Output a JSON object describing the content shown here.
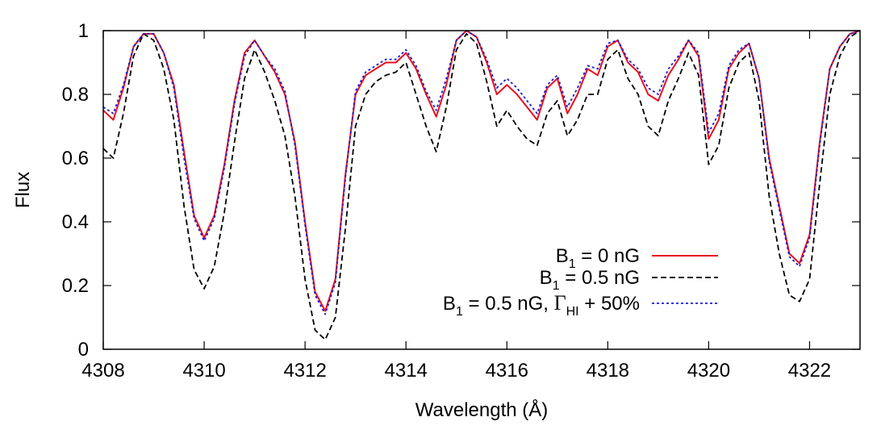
{
  "chart_data": {
    "type": "line",
    "xlabel": "Wavelength (Å)",
    "ylabel": "Flux",
    "xlim": [
      4308,
      4323
    ],
    "ylim": [
      0,
      1
    ],
    "xticks": [
      "4308",
      "4310",
      "4312",
      "4314",
      "4316",
      "4318",
      "4320",
      "4322"
    ],
    "yticks": [
      "0",
      "0.2",
      "0.4",
      "0.6",
      "0.8",
      "1"
    ],
    "grid": false,
    "legend_position": "bottom-right",
    "series": [
      {
        "name": "B1 = 0 nG",
        "legend": {
          "prefix": "B",
          "sub": "1",
          "rest": " =    0 nG"
        },
        "color": "#e8101c",
        "style": "solid",
        "x": [
          4308.0,
          4308.2,
          4308.4,
          4308.6,
          4308.8,
          4309.0,
          4309.2,
          4309.4,
          4309.6,
          4309.8,
          4310.0,
          4310.2,
          4310.4,
          4310.6,
          4310.8,
          4311.0,
          4311.2,
          4311.4,
          4311.6,
          4311.8,
          4312.0,
          4312.2,
          4312.4,
          4312.6,
          4312.8,
          4313.0,
          4313.2,
          4313.4,
          4313.6,
          4313.8,
          4314.0,
          4314.2,
          4314.4,
          4314.6,
          4314.8,
          4315.0,
          4315.2,
          4315.4,
          4315.6,
          4315.8,
          4316.0,
          4316.2,
          4316.4,
          4316.6,
          4316.8,
          4317.0,
          4317.2,
          4317.4,
          4317.6,
          4317.8,
          4318.0,
          4318.2,
          4318.4,
          4318.6,
          4318.8,
          4319.0,
          4319.2,
          4319.4,
          4319.6,
          4319.8,
          4320.0,
          4320.2,
          4320.4,
          4320.6,
          4320.8,
          4321.0,
          4321.2,
          4321.4,
          4321.6,
          4321.8,
          4322.0,
          4322.2,
          4322.4,
          4322.6,
          4322.8,
          4323.0
        ],
        "y": [
          0.75,
          0.72,
          0.82,
          0.95,
          0.99,
          0.99,
          0.93,
          0.83,
          0.62,
          0.42,
          0.35,
          0.42,
          0.58,
          0.78,
          0.93,
          0.97,
          0.92,
          0.87,
          0.8,
          0.65,
          0.4,
          0.18,
          0.12,
          0.22,
          0.55,
          0.8,
          0.86,
          0.88,
          0.9,
          0.9,
          0.93,
          0.88,
          0.8,
          0.73,
          0.83,
          0.97,
          1.0,
          0.98,
          0.9,
          0.8,
          0.83,
          0.8,
          0.76,
          0.72,
          0.82,
          0.85,
          0.74,
          0.8,
          0.88,
          0.86,
          0.95,
          0.97,
          0.9,
          0.87,
          0.8,
          0.78,
          0.86,
          0.91,
          0.97,
          0.92,
          0.66,
          0.72,
          0.88,
          0.93,
          0.96,
          0.85,
          0.6,
          0.45,
          0.3,
          0.27,
          0.36,
          0.65,
          0.88,
          0.95,
          0.99,
          1.0
        ]
      },
      {
        "name": "B1 = 0.5 nG",
        "legend": {
          "prefix": "B",
          "sub": "1",
          "rest": " = 0.5 nG"
        },
        "color": "#000000",
        "style": "dashed",
        "x": [
          4308.0,
          4308.2,
          4308.4,
          4308.6,
          4308.8,
          4309.0,
          4309.2,
          4309.4,
          4309.6,
          4309.8,
          4310.0,
          4310.2,
          4310.4,
          4310.6,
          4310.8,
          4311.0,
          4311.2,
          4311.4,
          4311.6,
          4311.8,
          4312.0,
          4312.2,
          4312.4,
          4312.6,
          4312.8,
          4313.0,
          4313.2,
          4313.4,
          4313.6,
          4313.8,
          4314.0,
          4314.2,
          4314.4,
          4314.6,
          4314.8,
          4315.0,
          4315.2,
          4315.4,
          4315.6,
          4315.8,
          4316.0,
          4316.2,
          4316.4,
          4316.6,
          4316.8,
          4317.0,
          4317.2,
          4317.4,
          4317.6,
          4317.8,
          4318.0,
          4318.2,
          4318.4,
          4318.6,
          4318.8,
          4319.0,
          4319.2,
          4319.4,
          4319.6,
          4319.8,
          4320.0,
          4320.2,
          4320.4,
          4320.6,
          4320.8,
          4321.0,
          4321.2,
          4321.4,
          4321.6,
          4321.8,
          4322.0,
          4322.2,
          4322.4,
          4322.6,
          4322.8,
          4323.0
        ],
        "y": [
          0.63,
          0.6,
          0.74,
          0.92,
          0.99,
          0.97,
          0.88,
          0.72,
          0.45,
          0.25,
          0.19,
          0.26,
          0.43,
          0.65,
          0.85,
          0.94,
          0.87,
          0.78,
          0.67,
          0.48,
          0.22,
          0.06,
          0.03,
          0.1,
          0.38,
          0.7,
          0.8,
          0.84,
          0.86,
          0.87,
          0.9,
          0.8,
          0.7,
          0.62,
          0.76,
          0.94,
          0.99,
          0.96,
          0.84,
          0.7,
          0.75,
          0.7,
          0.66,
          0.64,
          0.74,
          0.78,
          0.67,
          0.72,
          0.8,
          0.8,
          0.91,
          0.94,
          0.85,
          0.8,
          0.7,
          0.67,
          0.78,
          0.85,
          0.93,
          0.86,
          0.58,
          0.64,
          0.82,
          0.9,
          0.93,
          0.78,
          0.48,
          0.3,
          0.17,
          0.15,
          0.22,
          0.52,
          0.8,
          0.92,
          0.98,
          1.0
        ]
      },
      {
        "name": "B1 = 0.5 nG, ΓHI + 50%",
        "legend": {
          "prefix": "B",
          "sub": "1",
          "rest": " = 0.5 nG, ",
          "gamma": "Γ",
          "gamma_sub": "HI",
          "tail": " + 50%"
        },
        "color": "#1a1adc",
        "style": "dotted",
        "x": [
          4308.0,
          4308.2,
          4308.4,
          4308.6,
          4308.8,
          4309.0,
          4309.2,
          4309.4,
          4309.6,
          4309.8,
          4310.0,
          4310.2,
          4310.4,
          4310.6,
          4310.8,
          4311.0,
          4311.2,
          4311.4,
          4311.6,
          4311.8,
          4312.0,
          4312.2,
          4312.4,
          4312.6,
          4312.8,
          4313.0,
          4313.2,
          4313.4,
          4313.6,
          4313.8,
          4314.0,
          4314.2,
          4314.4,
          4314.6,
          4314.8,
          4315.0,
          4315.2,
          4315.4,
          4315.6,
          4315.8,
          4316.0,
          4316.2,
          4316.4,
          4316.6,
          4316.8,
          4317.0,
          4317.2,
          4317.4,
          4317.6,
          4317.8,
          4318.0,
          4318.2,
          4318.4,
          4318.6,
          4318.8,
          4319.0,
          4319.2,
          4319.4,
          4319.6,
          4319.8,
          4320.0,
          4320.2,
          4320.4,
          4320.6,
          4320.8,
          4321.0,
          4321.2,
          4321.4,
          4321.6,
          4321.8,
          4322.0,
          4322.2,
          4322.4,
          4322.6,
          4322.8,
          4323.0
        ],
        "y": [
          0.76,
          0.74,
          0.83,
          0.95,
          0.99,
          0.99,
          0.93,
          0.82,
          0.6,
          0.41,
          0.34,
          0.41,
          0.57,
          0.77,
          0.92,
          0.97,
          0.92,
          0.88,
          0.81,
          0.64,
          0.39,
          0.17,
          0.11,
          0.21,
          0.54,
          0.81,
          0.87,
          0.89,
          0.91,
          0.91,
          0.94,
          0.89,
          0.81,
          0.75,
          0.85,
          0.97,
          1.0,
          0.98,
          0.91,
          0.82,
          0.85,
          0.82,
          0.78,
          0.74,
          0.83,
          0.86,
          0.76,
          0.82,
          0.89,
          0.88,
          0.96,
          0.97,
          0.91,
          0.88,
          0.82,
          0.8,
          0.88,
          0.92,
          0.97,
          0.93,
          0.68,
          0.74,
          0.89,
          0.94,
          0.96,
          0.85,
          0.59,
          0.44,
          0.29,
          0.26,
          0.35,
          0.64,
          0.88,
          0.95,
          0.99,
          1.0
        ]
      }
    ]
  }
}
